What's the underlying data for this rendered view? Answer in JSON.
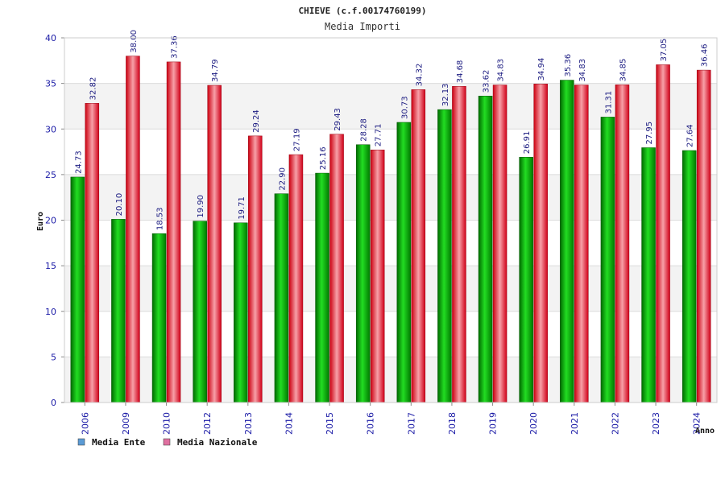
{
  "chart_data": {
    "type": "bar",
    "title": "CHIEVE (c.f.00174760199)",
    "subtitle": "Media Importi",
    "xlabel": "Anno",
    "ylabel": "Euro",
    "ylim": [
      0,
      40
    ],
    "yticks": [
      0,
      5,
      10,
      15,
      20,
      25,
      30,
      35,
      40
    ],
    "grid": "horizontal",
    "legend_position": "bottom-left",
    "categories": [
      "2006",
      "2009",
      "2010",
      "2012",
      "2013",
      "2014",
      "2015",
      "2016",
      "2017",
      "2018",
      "2019",
      "2020",
      "2021",
      "2022",
      "2023",
      "2024"
    ],
    "series": [
      {
        "name": "Media Ente",
        "color": "#00aa00",
        "legend_color": "#5b9bd5",
        "values": [
          24.73,
          20.1,
          18.53,
          19.9,
          19.71,
          22.9,
          25.16,
          28.28,
          30.73,
          32.13,
          33.62,
          26.91,
          35.36,
          31.31,
          27.95,
          27.64
        ],
        "labels": [
          "24.73",
          "20.10",
          "18.53",
          "19.90",
          "19.71",
          "22.90",
          "25.16",
          "28.28",
          "30.73",
          "32.13",
          "33.62",
          "26.91",
          "35.36",
          "31.31",
          "27.95",
          "27.64"
        ]
      },
      {
        "name": "Media Nazionale",
        "color": "#e8101a",
        "legend_color": "#e070a0",
        "values": [
          32.82,
          38.0,
          37.36,
          34.79,
          29.24,
          27.19,
          29.43,
          27.71,
          34.32,
          34.68,
          34.83,
          34.94,
          34.83,
          34.85,
          37.05,
          36.46
        ],
        "labels": [
          "32.82",
          "38.00",
          "37.36",
          "34.79",
          "29.24",
          "27.19",
          "29.43",
          "27.71",
          "34.32",
          "34.68",
          "34.83",
          "34.94",
          "34.83",
          "34.85",
          "37.05",
          "36.46"
        ]
      }
    ]
  }
}
